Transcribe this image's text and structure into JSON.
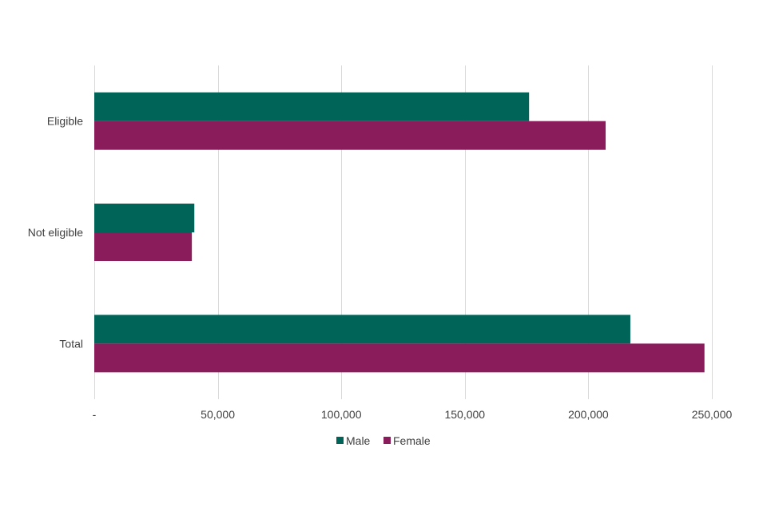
{
  "chart_data": {
    "type": "bar",
    "orientation": "horizontal",
    "categories": [
      "Eligible",
      "Not eligible",
      "Total"
    ],
    "series": [
      {
        "name": "Male",
        "color": "#006459",
        "values": [
          176000,
          40500,
          217000
        ]
      },
      {
        "name": "Female",
        "color": "#8a1c5b",
        "values": [
          207000,
          39500,
          247000
        ]
      }
    ],
    "xlim": [
      0,
      250000
    ],
    "x_ticks": [
      0,
      50000,
      100000,
      150000,
      200000,
      250000
    ],
    "x_tick_labels": [
      "-",
      "50,000",
      "100,000",
      "150,000",
      "200,000",
      "250,000"
    ],
    "title": "",
    "xlabel": "",
    "ylabel": "",
    "grid": "vertical",
    "legend": "bottom-center"
  }
}
